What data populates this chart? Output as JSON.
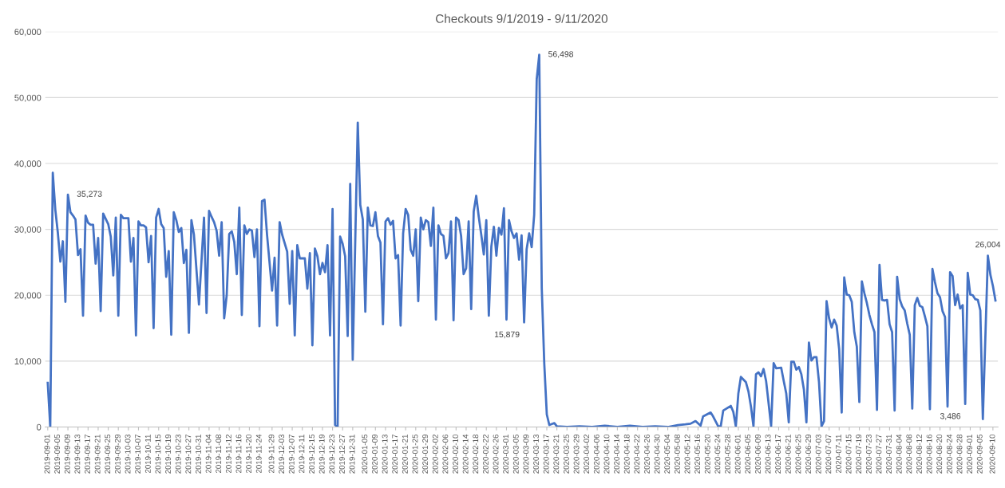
{
  "chart_data": {
    "type": "line",
    "title": "Checkouts 9/1/2019 - 9/11/2020",
    "x": [
      "2019-09-01",
      "2019-09-02",
      "2019-09-03",
      "2019-09-04",
      "2019-09-05",
      "2019-09-06",
      "2019-09-07",
      "2019-09-08",
      "2019-09-09",
      "2019-09-10",
      "2019-09-11",
      "2019-09-12",
      "2019-09-13",
      "2019-09-14",
      "2019-09-15",
      "2019-09-16",
      "2019-09-17",
      "2019-09-18",
      "2019-09-19",
      "2019-09-20",
      "2019-09-21",
      "2019-09-22",
      "2019-09-23",
      "2019-09-25",
      "2019-09-26",
      "2019-09-27",
      "2019-09-28",
      "2019-09-29",
      "2019-09-30",
      "2019-10-01",
      "2019-10-03",
      "2019-10-04",
      "2019-10-05",
      "2019-10-06",
      "2019-10-07",
      "2019-10-08",
      "2019-10-09",
      "2019-10-10",
      "2019-10-11",
      "2019-10-12",
      "2019-10-13",
      "2019-10-14",
      "2019-10-15",
      "2019-10-16",
      "2019-10-17",
      "2019-10-18",
      "2019-10-19",
      "2019-10-20",
      "2019-10-21",
      "2019-10-22",
      "2019-10-23",
      "2019-10-24",
      "2019-10-25",
      "2019-10-26",
      "2019-10-27",
      "2019-10-28",
      "2019-10-29",
      "2019-10-31",
      "2019-11-02",
      "2019-11-03",
      "2019-11-04",
      "2019-11-05",
      "2019-11-06",
      "2019-11-07",
      "2019-11-08",
      "2019-11-09",
      "2019-11-10",
      "2019-11-11",
      "2019-11-12",
      "2019-11-13",
      "2019-11-14",
      "2019-11-15",
      "2019-11-16",
      "2019-11-17",
      "2019-11-18",
      "2019-11-19",
      "2019-11-20",
      "2019-11-21",
      "2019-11-22",
      "2019-11-23",
      "2019-11-24",
      "2019-11-25",
      "2019-11-26",
      "2019-11-27",
      "2019-11-29",
      "2019-11-30",
      "2019-12-01",
      "2019-12-02",
      "2019-12-03",
      "2019-12-05",
      "2019-12-06",
      "2019-12-07",
      "2019-12-08",
      "2019-12-09",
      "2019-12-10",
      "2019-12-12",
      "2019-12-13",
      "2019-12-14",
      "2019-12-15",
      "2019-12-16",
      "2019-12-17",
      "2019-12-18",
      "2019-12-19",
      "2019-12-20",
      "2019-12-21",
      "2019-12-22",
      "2019-12-23",
      "2019-12-24",
      "2019-12-25",
      "2019-12-26",
      "2019-12-27",
      "2019-12-28",
      "2019-12-29",
      "2019-12-30",
      "2019-12-31",
      "2020-01-02",
      "2020-01-03",
      "2020-01-04",
      "2020-01-05",
      "2020-01-06",
      "2020-01-07",
      "2020-01-08",
      "2020-01-09",
      "2020-01-10",
      "2020-01-11",
      "2020-01-12",
      "2020-01-13",
      "2020-01-14",
      "2020-01-15",
      "2020-01-16",
      "2020-01-17",
      "2020-01-18",
      "2020-01-19",
      "2020-01-20",
      "2020-01-21",
      "2020-01-22",
      "2020-01-23",
      "2020-01-24",
      "2020-01-25",
      "2020-01-26",
      "2020-01-27",
      "2020-01-28",
      "2020-01-29",
      "2020-01-30",
      "2020-01-31",
      "2020-02-01",
      "2020-02-02",
      "2020-02-03",
      "2020-02-04",
      "2020-02-05",
      "2020-02-06",
      "2020-02-07",
      "2020-02-08",
      "2020-02-09",
      "2020-02-10",
      "2020-02-11",
      "2020-02-12",
      "2020-02-13",
      "2020-02-14",
      "2020-02-15",
      "2020-02-16",
      "2020-02-17",
      "2020-02-18",
      "2020-02-19",
      "2020-02-20",
      "2020-02-21",
      "2020-02-22",
      "2020-02-23",
      "2020-02-24",
      "2020-02-25",
      "2020-02-26",
      "2020-02-27",
      "2020-02-28",
      "2020-02-29",
      "2020-03-01",
      "2020-03-02",
      "2020-03-03",
      "2020-03-04",
      "2020-03-05",
      "2020-03-06",
      "2020-03-07",
      "2020-03-08",
      "2020-03-09",
      "2020-03-10",
      "2020-03-11",
      "2020-03-12",
      "2020-03-13",
      "2020-03-14",
      "2020-03-15",
      "2020-03-16",
      "2020-03-17",
      "2020-03-18",
      "2020-03-20",
      "2020-03-21",
      "2020-03-25",
      "2020-03-30",
      "2020-04-04",
      "2020-04-09",
      "2020-04-14",
      "2020-04-19",
      "2020-04-24",
      "2020-04-29",
      "2020-05-04",
      "2020-05-08",
      "2020-05-11",
      "2020-05-13",
      "2020-05-15",
      "2020-05-17",
      "2020-05-18",
      "2020-05-21",
      "2020-05-22",
      "2020-05-24",
      "2020-05-25",
      "2020-05-26",
      "2020-05-29",
      "2020-05-30",
      "2020-05-31",
      "2020-06-01",
      "2020-06-02",
      "2020-06-04",
      "2020-06-05",
      "2020-06-06",
      "2020-06-07",
      "2020-06-08",
      "2020-06-09",
      "2020-06-10",
      "2020-06-11",
      "2020-06-12",
      "2020-06-13",
      "2020-06-14",
      "2020-06-15",
      "2020-06-16",
      "2020-06-18",
      "2020-06-19",
      "2020-06-20",
      "2020-06-21",
      "2020-06-22",
      "2020-06-23",
      "2020-06-24",
      "2020-06-25",
      "2020-06-26",
      "2020-06-27",
      "2020-06-28",
      "2020-06-29",
      "2020-06-30",
      "2020-07-01",
      "2020-07-02",
      "2020-07-03",
      "2020-07-04",
      "2020-07-05",
      "2020-07-06",
      "2020-07-07",
      "2020-07-08",
      "2020-07-09",
      "2020-07-10",
      "2020-07-11",
      "2020-07-12",
      "2020-07-13",
      "2020-07-14",
      "2020-07-15",
      "2020-07-16",
      "2020-07-17",
      "2020-07-18",
      "2020-07-19",
      "2020-07-20",
      "2020-07-21",
      "2020-07-22",
      "2020-07-23",
      "2020-07-24",
      "2020-07-25",
      "2020-07-26",
      "2020-07-27",
      "2020-07-28",
      "2020-07-29",
      "2020-07-30",
      "2020-07-31",
      "2020-08-01",
      "2020-08-02",
      "2020-08-03",
      "2020-08-04",
      "2020-08-05",
      "2020-08-06",
      "2020-08-07",
      "2020-08-08",
      "2020-08-09",
      "2020-08-10",
      "2020-08-11",
      "2020-08-12",
      "2020-08-13",
      "2020-08-14",
      "2020-08-15",
      "2020-08-16",
      "2020-08-17",
      "2020-08-18",
      "2020-08-19",
      "2020-08-20",
      "2020-08-21",
      "2020-08-22",
      "2020-08-23",
      "2020-08-24",
      "2020-08-25",
      "2020-08-26",
      "2020-08-27",
      "2020-08-28",
      "2020-08-29",
      "2020-08-30",
      "2020-08-31",
      "2020-09-01",
      "2020-09-02",
      "2020-09-03",
      "2020-09-04",
      "2020-09-05",
      "2020-09-06",
      "2020-09-08",
      "2020-09-09",
      "2020-09-10",
      "2020-09-11"
    ],
    "series": [
      {
        "color": "#4472c4",
        "values": [
          6700,
          0,
          38600,
          33000,
          29500,
          25100,
          28200,
          19000,
          35273,
          32600,
          32100,
          31500,
          26100,
          27000,
          16900,
          32100,
          31000,
          30700,
          30700,
          24800,
          28700,
          17600,
          32400,
          30800,
          28900,
          23000,
          31800,
          16900,
          32200,
          31700,
          31700,
          25100,
          28700,
          13900,
          31200,
          30600,
          30600,
          30300,
          25000,
          29000,
          15000,
          31800,
          33100,
          30800,
          30200,
          22800,
          26700,
          14000,
          32600,
          31400,
          29600,
          30200,
          24900,
          26900,
          14300,
          31400,
          29200,
          18600,
          31800,
          17300,
          32800,
          31900,
          31100,
          29800,
          26000,
          31100,
          16500,
          20000,
          29300,
          29700,
          28100,
          23200,
          33300,
          17000,
          30600,
          29300,
          30000,
          29800,
          25800,
          30000,
          15300,
          34300,
          34500,
          29200,
          20700,
          25700,
          15400,
          31100,
          29200,
          26600,
          18700,
          26700,
          13900,
          27600,
          25600,
          25600,
          21000,
          26400,
          12400,
          27100,
          25900,
          23200,
          24900,
          23500,
          27600,
          13900,
          33100,
          300,
          100,
          28900,
          27800,
          25900,
          13800,
          36900,
          10200,
          46200,
          33700,
          31500,
          17500,
          33300,
          30600,
          30500,
          32600,
          29000,
          28000,
          15600,
          31200,
          31700,
          30700,
          31300,
          25600,
          26100,
          15400,
          29400,
          33100,
          32200,
          26900,
          26000,
          30000,
          19100,
          31800,
          30000,
          31400,
          31100,
          27500,
          33300,
          16300,
          30600,
          29300,
          29000,
          25600,
          26400,
          31200,
          16200,
          31800,
          31400,
          29000,
          23200,
          24100,
          31200,
          17900,
          32700,
          35100,
          31900,
          29200,
          26200,
          31400,
          16900,
          27400,
          30400,
          26000,
          30200,
          29200,
          33200,
          16300,
          31400,
          29700,
          28700,
          29400,
          25400,
          29100,
          15879,
          27000,
          29400,
          27300,
          32200,
          52800,
          56498,
          21100,
          9600,
          1900,
          300,
          600,
          100,
          0,
          100,
          0,
          200,
          0,
          200,
          0,
          100,
          0,
          300,
          400,
          500,
          900,
          200,
          1600,
          2200,
          1600,
          100,
          100,
          2500,
          3200,
          2300,
          100,
          5100,
          7600,
          6800,
          5400,
          3100,
          100,
          8000,
          8300,
          7700,
          8800,
          7000,
          3600,
          100,
          9700,
          8900,
          9000,
          7000,
          5100,
          700,
          9900,
          9900,
          8700,
          9100,
          8000,
          5700,
          700,
          12800,
          10100,
          10600,
          10600,
          6800,
          100,
          900,
          19100,
          16500,
          15100,
          16300,
          15400,
          11800,
          2200,
          22700,
          20100,
          20000,
          19000,
          14400,
          12200,
          3800,
          22100,
          20300,
          18800,
          17000,
          15600,
          14400,
          2600,
          24600,
          19300,
          19200,
          19300,
          15600,
          14400,
          2500,
          22800,
          19400,
          18300,
          17700,
          15700,
          14000,
          2800,
          18500,
          19600,
          18400,
          18200,
          16800,
          15300,
          2700,
          24000,
          22000,
          20300,
          19700,
          17600,
          16700,
          3100,
          23500,
          22900,
          18500,
          20100,
          18000,
          18500,
          3486,
          23400,
          20100,
          20000,
          19400,
          19300,
          17700,
          1200,
          26004,
          23100,
          21400,
          19200
        ]
      }
    ],
    "xlim": [
      "2019-08-31",
      "2020-09-12"
    ],
    "xticks": [
      "2019-09-01",
      "2019-09-05",
      "2019-09-09",
      "2019-09-13",
      "2019-09-17",
      "2019-09-21",
      "2019-09-25",
      "2019-09-29",
      "2019-10-03",
      "2019-10-07",
      "2019-10-11",
      "2019-10-15",
      "2019-10-19",
      "2019-10-23",
      "2019-10-27",
      "2019-10-31",
      "2019-11-04",
      "2019-11-08",
      "2019-11-12",
      "2019-11-16",
      "2019-11-20",
      "2019-11-24",
      "2019-11-29",
      "2019-12-03",
      "2019-12-07",
      "2019-12-11",
      "2019-12-15",
      "2019-12-19",
      "2019-12-23",
      "2019-12-27",
      "2019-12-31",
      "2020-01-05",
      "2020-01-09",
      "2020-01-13",
      "2020-01-17",
      "2020-01-21",
      "2020-01-25",
      "2020-01-29",
      "2020-02-02",
      "2020-02-06",
      "2020-02-10",
      "2020-02-14",
      "2020-02-18",
      "2020-02-22",
      "2020-02-26",
      "2020-03-01",
      "2020-03-05",
      "2020-03-09",
      "2020-03-13",
      "2020-03-17",
      "2020-03-21",
      "2020-03-25",
      "2020-03-29",
      "2020-04-02",
      "2020-04-06",
      "2020-04-10",
      "2020-04-14",
      "2020-04-18",
      "2020-04-22",
      "2020-04-26",
      "2020-04-30",
      "2020-05-04",
      "2020-05-08",
      "2020-05-12",
      "2020-05-16",
      "2020-05-20",
      "2020-05-24",
      "2020-05-28",
      "2020-06-01",
      "2020-06-05",
      "2020-06-09",
      "2020-06-13",
      "2020-06-17",
      "2020-06-21",
      "2020-06-25",
      "2020-06-29",
      "2020-07-03",
      "2020-07-07",
      "2020-07-11",
      "2020-07-15",
      "2020-07-19",
      "2020-07-23",
      "2020-07-27",
      "2020-07-31",
      "2020-08-04",
      "2020-08-08",
      "2020-08-12",
      "2020-08-16",
      "2020-08-20",
      "2020-08-24",
      "2020-08-28",
      "2020-09-01",
      "2020-09-05",
      "2020-09-10"
    ],
    "ylim": [
      0,
      60000
    ],
    "yticks": [
      0,
      {
        "value": 10000,
        "label": "10,000"
      },
      {
        "value": 20000,
        "label": "20,000"
      },
      {
        "value": 30000,
        "label": "30,000"
      },
      {
        "value": 40000,
        "label": "40,000"
      },
      {
        "value": 50000,
        "label": "50,000"
      },
      {
        "value": 60000,
        "label": "60,000"
      }
    ],
    "grid": "y",
    "marker": "none",
    "line_style": "solid",
    "annotations": [
      {
        "text": "35,273",
        "x": "2019-09-09",
        "y": 35273
      },
      {
        "text": "56,498",
        "x": "2020-03-14",
        "y": 56498
      },
      {
        "text": "15,879",
        "x": "2020-03-08",
        "y": 15879
      },
      {
        "text": "26,004",
        "x": "2020-09-08",
        "y": 26004
      },
      {
        "text": "3,486",
        "x": "2020-08-30",
        "y": 3486
      }
    ]
  }
}
